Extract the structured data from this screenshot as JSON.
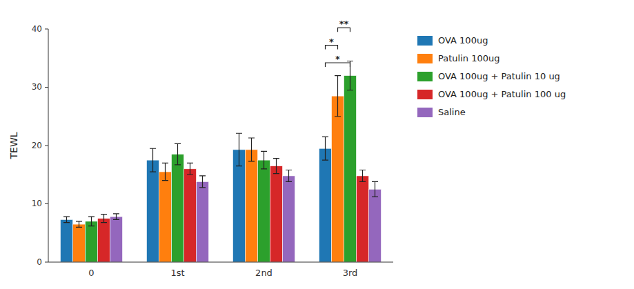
{
  "chart_data": {
    "type": "bar",
    "categories": [
      "0",
      "1st",
      "2nd",
      "3rd"
    ],
    "series": [
      {
        "name": "OVA 100ug",
        "values": [
          7.3,
          17.5,
          19.3,
          19.5
        ],
        "errors": [
          0.5,
          2.0,
          2.8,
          2.0
        ]
      },
      {
        "name": "Patulin 100ug",
        "values": [
          6.5,
          15.5,
          19.3,
          28.5
        ],
        "errors": [
          0.5,
          1.5,
          2.0,
          3.5
        ]
      },
      {
        "name": "OVA 100ug + Patulin 10 ug",
        "values": [
          7.0,
          18.5,
          17.5,
          32.0
        ],
        "errors": [
          0.8,
          1.8,
          1.5,
          2.5
        ]
      },
      {
        "name": "OVA 100ug + Patulin 100 ug",
        "values": [
          7.5,
          16.0,
          16.5,
          14.8
        ],
        "errors": [
          0.7,
          1.0,
          1.3,
          1.0
        ]
      },
      {
        "name": "Saline",
        "values": [
          7.8,
          13.8,
          14.8,
          12.5
        ],
        "errors": [
          0.5,
          1.0,
          1.0,
          1.3
        ]
      }
    ],
    "ylabel": "TEWL",
    "ylim": [
      0,
      40
    ],
    "yticks": [
      0,
      10,
      20,
      30,
      40
    ],
    "grid": false,
    "legend": "right",
    "annotations": [
      {
        "text": "*",
        "category": "3rd",
        "between": [
          "OVA 100ug",
          "OVA 100ug + Patulin 10 ug"
        ],
        "y": 33.5
      },
      {
        "text": "*",
        "category": "3rd",
        "between": [
          "OVA 100ug",
          "Patulin 100ug"
        ],
        "y": 36.5
      },
      {
        "text": "**",
        "category": "3rd",
        "between": [
          "Patulin 100ug",
          "OVA 100ug + Patulin 10 ug"
        ],
        "y": 39.5
      }
    ]
  }
}
